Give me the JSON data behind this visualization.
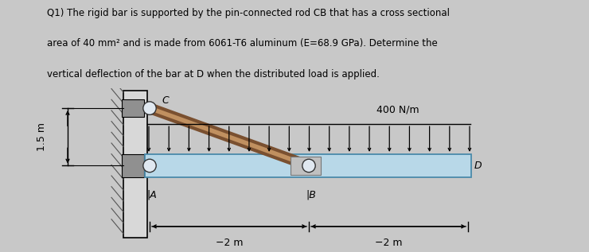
{
  "title_line1": "Q1) The rigid bar is supported by the pin-connected rod CB that has a cross sectional",
  "title_line2": "area of 40 mm² and is made from 6061-T6 aluminum (E=68.9 GPa). Determine the",
  "title_line3": "vertical deflection of the bar at D when the distributed load is applied.",
  "bg_color": "#c8c8c8",
  "bar_color": "#b8d8e8",
  "bar_edge_color": "#4a8aaa",
  "rod_color_dark": "#7a5030",
  "rod_color_light": "#c09060",
  "wall_face_color": "#d8d8d8",
  "wall_edge_color": "#000000",
  "hatch_color": "#555555",
  "bracket_color": "#909090",
  "pin_face_color": "#e0e8f0",
  "pin_edge_color": "#333333",
  "clevis_color": "#c0c0c0",
  "label_400": "400 N/m",
  "label_15m": "1.5 m",
  "label_A": "A",
  "label_B": "B",
  "label_C": "C",
  "label_D": "D",
  "label_2m_left": "−2 m",
  "label_2m_right": "−2 m",
  "text_color": "#000000",
  "figsize": [
    7.4,
    3.17
  ],
  "dpi": 100
}
